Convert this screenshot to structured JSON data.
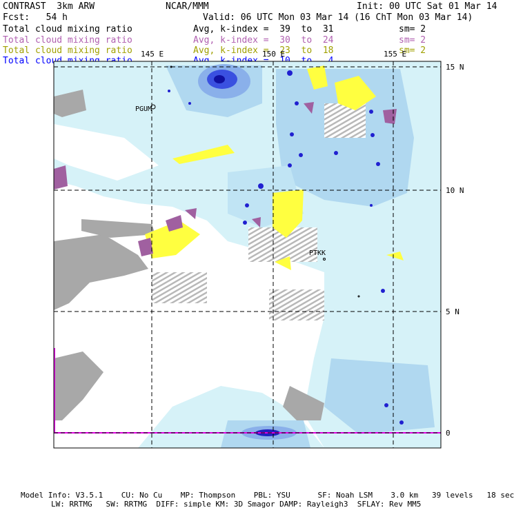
{
  "header": {
    "title": "CONTRAST  3km ARW",
    "center": "NCAR/MMM",
    "init": "Init: 00 UTC Sat 01 Mar 14",
    "fcst": "Fcst:   54 h",
    "valid": "Valid: 06 UTC Mon 03 Mar 14 (16 ChT Mon 03 Mar 14)"
  },
  "fields": [
    {
      "name": "Total cloud mixing ratio",
      "range": "Avg, k-index =  39  to  31",
      "sm": "sm= 2",
      "color": "#000000"
    },
    {
      "name": "Total cloud mixing ratio",
      "range": "Avg, k-index =  30  to  24",
      "sm": "sm= 2",
      "color": "#b060b0"
    },
    {
      "name": "Total cloud mixing ratio",
      "range": "Avg, k-index =  23  to  18",
      "sm": "sm= 2",
      "color": "#a0a000"
    },
    {
      "name": "Total cloud mixing ratio",
      "range": "Avg, k-index =  10  to   4",
      "sm": "",
      "color": "#0000ff"
    }
  ],
  "map": {
    "lon_labels": [
      "145 E",
      "150 E",
      "155 E"
    ],
    "lat_labels": [
      "15 N",
      "10 N",
      "5 N",
      "0"
    ],
    "stations": [
      "PGUM",
      "PTKK"
    ]
  },
  "footer": {
    "line1": "Model Info: V3.5.1    CU: No Cu    MP: Thompson    PBL: YSU      SF: Noah LSM    3.0 km   39 levels   18 sec",
    "line2": "LW: RRTMG   SW: RRTMG  DIFF: simple KM: 3D Smagor DAMP: Rayleigh3  SFLAY: Rev MM5"
  },
  "colors": {
    "cyan": "#d6f2f8",
    "light_blue": "#b0d8f0",
    "mid_blue": "#8ab0ea",
    "deep_blue": "#2020d0",
    "gray": "#a8a8a8",
    "yellow": "#ffff40",
    "purple": "#a060a0",
    "magenta": "#e000e0"
  }
}
